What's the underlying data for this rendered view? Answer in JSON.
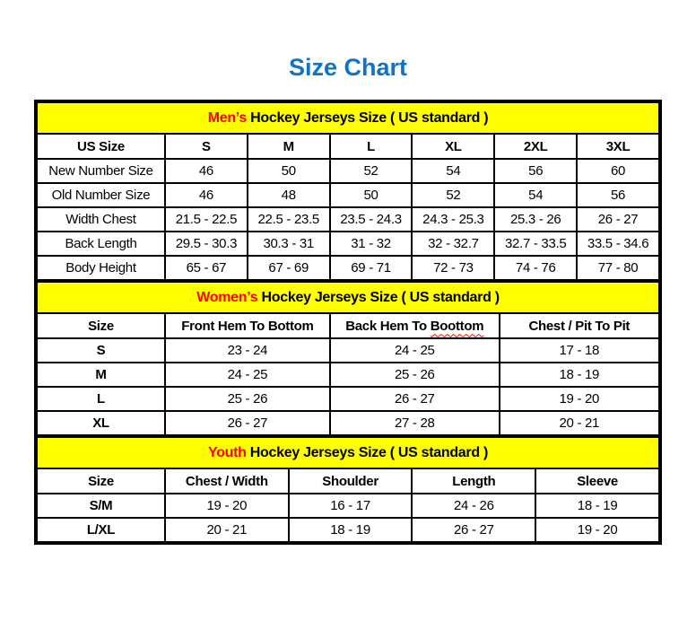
{
  "page": {
    "title": "Size Chart"
  },
  "colors": {
    "title_blue": "#1273C4",
    "section_header_bg": "#FFFF00",
    "highlight_red": "#FF0000",
    "border_black": "#000000"
  },
  "sections": [
    {
      "id": "mens",
      "heading_highlight": "Men’s",
      "heading_rest": " Hockey Jerseys Size ( US standard )",
      "columns": [
        "US Size",
        "S",
        "M",
        "L",
        "XL",
        "2XL",
        "3XL"
      ],
      "rows": [
        {
          "label": "New Number Size",
          "values": [
            "46",
            "50",
            "52",
            "54",
            "56",
            "60"
          ]
        },
        {
          "label": "Old Number Size",
          "values": [
            "46",
            "48",
            "50",
            "52",
            "54",
            "56"
          ]
        },
        {
          "label": "Width Chest",
          "values": [
            "21.5 - 22.5",
            "22.5 - 23.5",
            "23.5 - 24.3",
            "24.3 - 25.3",
            "25.3 - 26",
            "26 - 27"
          ]
        },
        {
          "label": "Back Length",
          "values": [
            "29.5 - 30.3",
            "30.3 - 31",
            "31 - 32",
            "32 - 32.7",
            "32.7 - 33.5",
            "33.5 - 34.6"
          ]
        },
        {
          "label": "Body Height",
          "values": [
            "65 - 67",
            "67 - 69",
            "69 - 71",
            "72 - 73",
            "74 - 76",
            "77 - 80"
          ]
        }
      ]
    },
    {
      "id": "womens",
      "heading_highlight": "Women’s",
      "heading_rest": " Hockey Jerseys Size ( US standard )",
      "columns": [
        "Size",
        "Front Hem To Bottom",
        "Back Hem To Boottom",
        "Chest / Pit To Pit"
      ],
      "misspelled_word": "Boottom",
      "rows": [
        {
          "label": "S",
          "values": [
            "23 - 24",
            "24 - 25",
            "17 - 18"
          ]
        },
        {
          "label": "M",
          "values": [
            "24 - 25",
            "25 - 26",
            "18 - 19"
          ]
        },
        {
          "label": "L",
          "values": [
            "25 - 26",
            "26 - 27",
            "19 - 20"
          ]
        },
        {
          "label": "XL",
          "values": [
            "26 - 27",
            "27 - 28",
            "20 - 21"
          ]
        }
      ]
    },
    {
      "id": "youth",
      "heading_highlight": "Youth",
      "heading_rest": " Hockey Jerseys Size ( US standard )",
      "columns": [
        "Size",
        "Chest / Width",
        "Shoulder",
        "Length",
        "Sleeve"
      ],
      "rows": [
        {
          "label": "S/M",
          "values": [
            "19 - 20",
            "16 - 17",
            "24 - 26",
            "18 - 19"
          ]
        },
        {
          "label": "L/XL",
          "values": [
            "20 - 21",
            "18 - 19",
            "26 - 27",
            "19 - 20"
          ]
        }
      ]
    }
  ]
}
